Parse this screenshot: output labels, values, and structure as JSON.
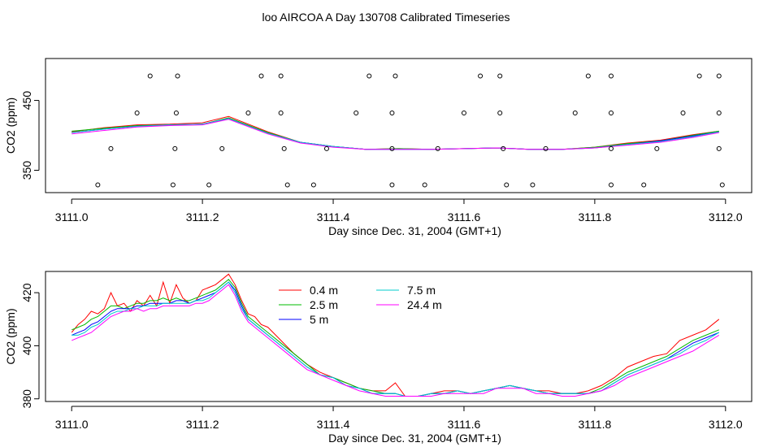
{
  "figure_title": "loo AIRCOA A  Day 130708  Calibrated Timeseries",
  "chart_data": [
    {
      "type": "line",
      "xlabel": "Day since Dec. 31, 2004 (GMT+1)",
      "ylabel": "CO2 (ppm)",
      "xlim": [
        3110.96,
        3112.04
      ],
      "ylim": [
        318,
        510
      ],
      "x_ticks": [
        "3111.0",
        "3111.2",
        "3111.4",
        "3111.6",
        "3111.8",
        "3112.0"
      ],
      "y_ticks": [
        "350",
        "450"
      ],
      "series_colors": [
        "#ff0000",
        "#00bb00",
        "#0000ff",
        "#00cccc",
        "#ff00ff"
      ],
      "x": [
        3111.0,
        3111.05,
        3111.1,
        3111.15,
        3111.2,
        3111.24,
        3111.3,
        3111.35,
        3111.4,
        3111.45,
        3111.5,
        3111.55,
        3111.6,
        3111.65,
        3111.7,
        3111.75,
        3111.8,
        3111.85,
        3111.9,
        3111.95,
        3111.99
      ],
      "series": [
        {
          "values": [
            405,
            411,
            415,
            416,
            418,
            427,
            405,
            390,
            384,
            380,
            381,
            380,
            381,
            382,
            380,
            380,
            383,
            389,
            393,
            401,
            406
          ]
        },
        {
          "values": [
            406,
            410,
            414,
            415,
            416,
            425,
            404,
            390,
            384,
            380,
            381,
            380,
            381,
            382,
            380,
            380,
            383,
            388,
            392,
            400,
            406
          ]
        },
        {
          "values": [
            404,
            409,
            413,
            415,
            416,
            424,
            403,
            390,
            384,
            380,
            380,
            380,
            381,
            382,
            380,
            380,
            382,
            387,
            392,
            399,
            405
          ]
        },
        {
          "values": [
            404,
            409,
            413,
            415,
            416,
            424,
            403,
            390,
            384,
            380,
            380,
            380,
            381,
            382,
            380,
            380,
            382,
            387,
            391,
            398,
            405
          ]
        },
        {
          "values": [
            402,
            407,
            412,
            414,
            415,
            423,
            402,
            389,
            383,
            380,
            380,
            380,
            381,
            382,
            380,
            380,
            382,
            386,
            390,
            397,
            404
          ]
        }
      ],
      "markers": [
        {
          "x": 3111.04,
          "y": 329
        },
        {
          "x": 3111.06,
          "y": 381
        },
        {
          "x": 3111.1,
          "y": 432
        },
        {
          "x": 3111.12,
          "y": 485
        },
        {
          "x": 3111.155,
          "y": 329
        },
        {
          "x": 3111.158,
          "y": 381
        },
        {
          "x": 3111.16,
          "y": 432
        },
        {
          "x": 3111.162,
          "y": 485
        },
        {
          "x": 3111.21,
          "y": 329
        },
        {
          "x": 3111.23,
          "y": 381
        },
        {
          "x": 3111.27,
          "y": 432
        },
        {
          "x": 3111.29,
          "y": 485
        },
        {
          "x": 3111.32,
          "y": 485
        },
        {
          "x": 3111.32,
          "y": 432
        },
        {
          "x": 3111.325,
          "y": 381
        },
        {
          "x": 3111.33,
          "y": 329
        },
        {
          "x": 3111.37,
          "y": 329
        },
        {
          "x": 3111.39,
          "y": 381
        },
        {
          "x": 3111.435,
          "y": 432
        },
        {
          "x": 3111.455,
          "y": 485
        },
        {
          "x": 3111.49,
          "y": 329
        },
        {
          "x": 3111.49,
          "y": 381
        },
        {
          "x": 3111.49,
          "y": 432
        },
        {
          "x": 3111.495,
          "y": 485
        },
        {
          "x": 3111.54,
          "y": 329
        },
        {
          "x": 3111.56,
          "y": 381
        },
        {
          "x": 3111.6,
          "y": 432
        },
        {
          "x": 3111.625,
          "y": 485
        },
        {
          "x": 3111.655,
          "y": 485
        },
        {
          "x": 3111.655,
          "y": 432
        },
        {
          "x": 3111.66,
          "y": 381
        },
        {
          "x": 3111.665,
          "y": 329
        },
        {
          "x": 3111.705,
          "y": 329
        },
        {
          "x": 3111.725,
          "y": 381
        },
        {
          "x": 3111.77,
          "y": 432
        },
        {
          "x": 3111.79,
          "y": 485
        },
        {
          "x": 3111.825,
          "y": 485
        },
        {
          "x": 3111.825,
          "y": 432
        },
        {
          "x": 3111.825,
          "y": 381
        },
        {
          "x": 3111.825,
          "y": 329
        },
        {
          "x": 3111.875,
          "y": 329
        },
        {
          "x": 3111.895,
          "y": 381
        },
        {
          "x": 3111.935,
          "y": 432
        },
        {
          "x": 3111.96,
          "y": 485
        },
        {
          "x": 3111.99,
          "y": 485
        },
        {
          "x": 3111.99,
          "y": 432
        },
        {
          "x": 3111.99,
          "y": 381
        },
        {
          "x": 3111.995,
          "y": 329
        }
      ]
    },
    {
      "type": "line",
      "xlabel": "Day since Dec. 31, 2004 (GMT+1)",
      "ylabel": "CO2 (ppm)",
      "xlim": [
        3110.96,
        3112.04
      ],
      "ylim": [
        379,
        428
      ],
      "x_ticks": [
        "3111.0",
        "3111.2",
        "3111.4",
        "3111.6",
        "3111.8",
        "3112.0"
      ],
      "y_ticks": [
        "380",
        "400",
        "420"
      ],
      "legend": {
        "placement": "top-center",
        "entries": [
          {
            "name": "0.4 m",
            "color": "#ff0000"
          },
          {
            "name": "2.5 m",
            "color": "#00bb00"
          },
          {
            "name": "5 m",
            "color": "#0000ff"
          },
          {
            "name": "7.5 m",
            "color": "#00cccc"
          },
          {
            "name": "24.4 m",
            "color": "#ff00ff"
          }
        ]
      },
      "x": [
        3111.0,
        3111.01,
        3111.02,
        3111.03,
        3111.04,
        3111.05,
        3111.06,
        3111.07,
        3111.08,
        3111.09,
        3111.1,
        3111.11,
        3111.12,
        3111.13,
        3111.14,
        3111.15,
        3111.16,
        3111.17,
        3111.18,
        3111.19,
        3111.2,
        3111.21,
        3111.22,
        3111.23,
        3111.24,
        3111.25,
        3111.26,
        3111.27,
        3111.28,
        3111.29,
        3111.3,
        3111.32,
        3111.34,
        3111.36,
        3111.38,
        3111.4,
        3111.42,
        3111.44,
        3111.46,
        3111.48,
        3111.495,
        3111.51,
        3111.53,
        3111.55,
        3111.57,
        3111.59,
        3111.61,
        3111.63,
        3111.65,
        3111.67,
        3111.69,
        3111.71,
        3111.73,
        3111.75,
        3111.77,
        3111.79,
        3111.81,
        3111.83,
        3111.85,
        3111.87,
        3111.89,
        3111.91,
        3111.93,
        3111.95,
        3111.97,
        3111.99
      ],
      "series": [
        {
          "name": "0.4 m",
          "values": [
            405,
            408,
            410,
            413,
            412,
            414,
            420,
            415,
            416,
            413,
            417,
            415,
            419,
            415,
            424,
            416,
            423,
            418,
            416,
            417,
            421,
            422,
            423,
            425,
            427,
            423,
            417,
            412,
            411,
            408,
            407,
            402,
            397,
            393,
            390,
            388,
            386,
            384,
            383,
            383,
            386,
            381,
            381,
            382,
            383,
            383,
            382,
            383,
            384,
            385,
            384,
            383,
            383,
            382,
            382,
            383,
            385,
            388,
            392,
            394,
            396,
            397,
            402,
            404,
            406,
            410
          ]
        },
        {
          "name": "2.5 m",
          "values": [
            406,
            407,
            408,
            410,
            411,
            413,
            415,
            415,
            414,
            415,
            416,
            416,
            417,
            417,
            418,
            417,
            418,
            417,
            417,
            418,
            419,
            420,
            421,
            423,
            425,
            422,
            416,
            411,
            409,
            407,
            405,
            401,
            397,
            393,
            389,
            388,
            386,
            384,
            383,
            382,
            382,
            381,
            381,
            382,
            382,
            383,
            382,
            383,
            384,
            385,
            384,
            383,
            382,
            382,
            382,
            382,
            384,
            387,
            390,
            392,
            394,
            396,
            399,
            402,
            404,
            406
          ]
        },
        {
          "name": "5 m",
          "values": [
            404,
            405,
            406,
            408,
            409,
            411,
            413,
            414,
            414,
            414,
            415,
            415,
            416,
            416,
            416,
            416,
            417,
            417,
            416,
            417,
            418,
            419,
            420,
            422,
            424,
            421,
            415,
            410,
            408,
            406,
            404,
            400,
            396,
            392,
            389,
            388,
            385,
            384,
            382,
            382,
            382,
            381,
            381,
            382,
            382,
            383,
            382,
            383,
            384,
            385,
            384,
            383,
            382,
            382,
            382,
            382,
            383,
            386,
            389,
            391,
            393,
            395,
            398,
            401,
            403,
            405
          ]
        },
        {
          "name": "7.5 m",
          "values": [
            404,
            404,
            405,
            407,
            408,
            410,
            412,
            413,
            413,
            414,
            414,
            415,
            415,
            415,
            416,
            416,
            416,
            416,
            416,
            417,
            417,
            418,
            420,
            422,
            424,
            420,
            414,
            410,
            408,
            406,
            404,
            400,
            396,
            392,
            389,
            388,
            385,
            384,
            382,
            382,
            382,
            381,
            381,
            382,
            382,
            383,
            382,
            383,
            384,
            385,
            384,
            383,
            382,
            382,
            382,
            382,
            383,
            386,
            389,
            391,
            393,
            395,
            397,
            400,
            402,
            405
          ]
        },
        {
          "name": "24.4 m",
          "values": [
            402,
            403,
            404,
            405,
            407,
            409,
            411,
            412,
            413,
            413,
            414,
            413,
            414,
            414,
            415,
            415,
            415,
            415,
            415,
            416,
            416,
            417,
            419,
            421,
            423,
            419,
            413,
            409,
            407,
            405,
            403,
            399,
            395,
            391,
            389,
            387,
            385,
            383,
            382,
            381,
            381,
            381,
            381,
            381,
            382,
            382,
            382,
            382,
            384,
            384,
            384,
            382,
            382,
            381,
            381,
            382,
            383,
            385,
            388,
            390,
            392,
            394,
            396,
            398,
            401,
            404
          ]
        }
      ]
    }
  ]
}
